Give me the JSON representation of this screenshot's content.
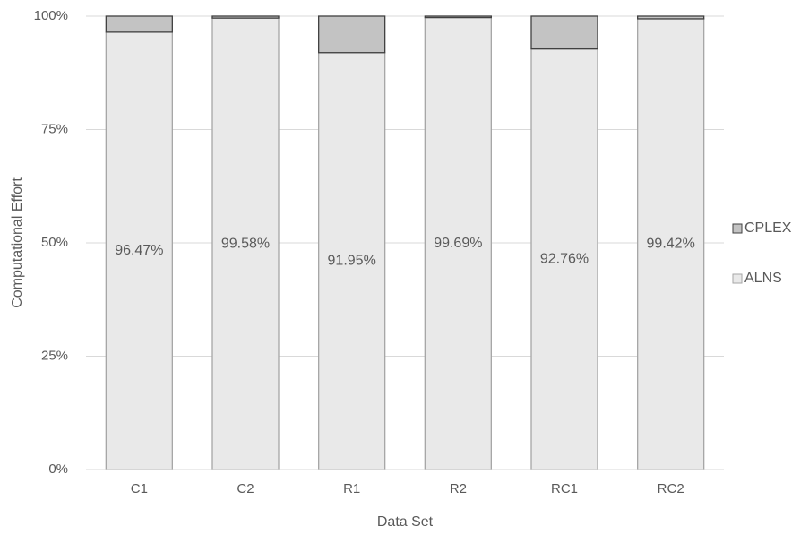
{
  "chart_data": {
    "type": "stacked_bar_100",
    "x_label": "Data Set",
    "y_label": "Computational Effort",
    "categories": [
      "C1",
      "C2",
      "R1",
      "R2",
      "RC1",
      "RC2"
    ],
    "series": [
      {
        "name": "ALNS",
        "color": "#e9e9e9",
        "edge_color": "#a6a6a6",
        "values": [
          96.47,
          99.58,
          91.95,
          99.69,
          92.76,
          99.42
        ],
        "value_labels": [
          "96.47%",
          "99.58%",
          "91.95%",
          "99.69%",
          "92.76%",
          "99.42%"
        ]
      },
      {
        "name": "CPLEX",
        "color": "#c3c3c3",
        "edge_color": "#404040",
        "values": [
          3.53,
          0.42,
          8.05,
          0.31,
          7.24,
          0.58
        ]
      }
    ],
    "ylim": [
      0,
      100
    ],
    "yticks": [
      {
        "value": 0,
        "label": "0%"
      },
      {
        "value": 25,
        "label": "25%"
      },
      {
        "value": 50,
        "label": "50%"
      },
      {
        "value": 75,
        "label": "75%"
      },
      {
        "value": 100,
        "label": "100%"
      }
    ],
    "grid": true,
    "legend": "right"
  }
}
